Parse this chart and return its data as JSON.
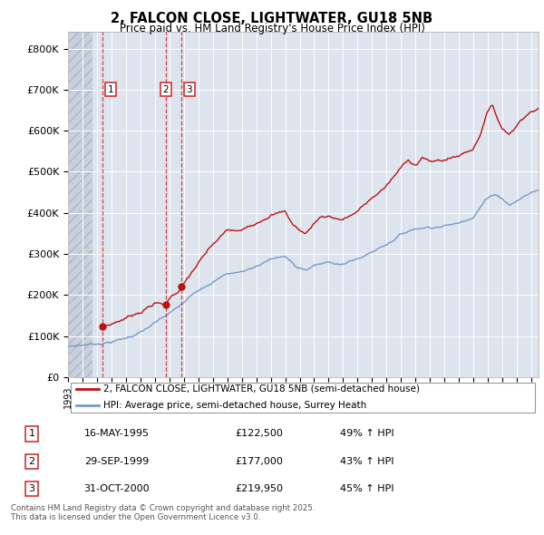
{
  "title": "2, FALCON CLOSE, LIGHTWATER, GU18 5NB",
  "subtitle": "Price paid vs. HM Land Registry's House Price Index (HPI)",
  "legend_entries": [
    "2, FALCON CLOSE, LIGHTWATER, GU18 5NB (semi-detached house)",
    "HPI: Average price, semi-detached house, Surrey Heath"
  ],
  "sale_color": "#bb1111",
  "hpi_color": "#7799cc",
  "transaction_color": "#cc2222",
  "table_rows": [
    [
      "1",
      "16-MAY-1995",
      "£122,500",
      "49% ↑ HPI"
    ],
    [
      "2",
      "29-SEP-1999",
      "£177,000",
      "43% ↑ HPI"
    ],
    [
      "3",
      "31-OCT-2000",
      "£219,950",
      "45% ↑ HPI"
    ]
  ],
  "transaction_dates": [
    1995.37,
    1999.75,
    2000.83
  ],
  "transaction_prices": [
    122500,
    177000,
    219950
  ],
  "transaction_labels": [
    "1",
    "2",
    "3"
  ],
  "footer": "Contains HM Land Registry data © Crown copyright and database right 2025.\nThis data is licensed under the Open Government Licence v3.0.",
  "background_color": "#ffffff",
  "plot_bg_color": "#dde4ee",
  "ylim": [
    0,
    840000
  ],
  "xlim": [
    1993.0,
    2025.5
  ],
  "yticks": [
    0,
    100000,
    200000,
    300000,
    400000,
    500000,
    600000,
    700000,
    800000
  ],
  "ytick_labels": [
    "£0",
    "£100K",
    "£200K",
    "£300K",
    "£400K",
    "£500K",
    "£600K",
    "£700K",
    "£800K"
  ]
}
